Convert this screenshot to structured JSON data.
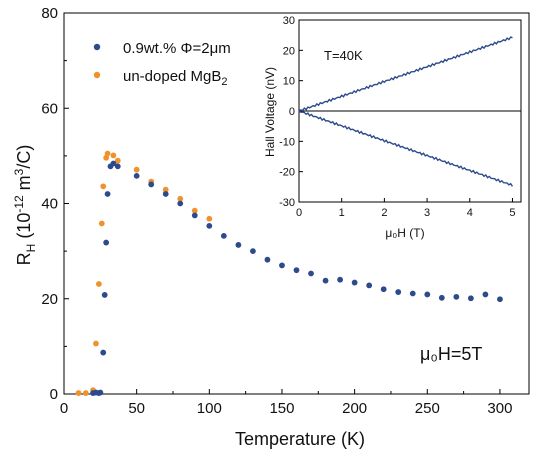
{
  "chart_data": [
    {
      "type": "scatter",
      "xlabel": "Temperature (K)",
      "ylabel_main": "R",
      "ylabel_sub": "H",
      "ylabel_unit_a": " (10",
      "ylabel_exp": "-12",
      "ylabel_unit_b": " m",
      "ylabel_exp2": "3",
      "ylabel_unit_c": "/C)",
      "xlim": [
        0,
        320
      ],
      "ylim": [
        0,
        80
      ],
      "xticks": [
        0,
        50,
        100,
        150,
        200,
        250,
        300
      ],
      "yticks": [
        0,
        20,
        40,
        60,
        80
      ],
      "legend_position": "top-left",
      "annotation": "μ₀H=5T",
      "series": [
        {
          "name": "0.9wt.% Φ=2μm",
          "color": "#2d4a8c",
          "points": [
            [
              20,
              0.2
            ],
            [
              22,
              0.3
            ],
            [
              24,
              0.2
            ],
            [
              25,
              0.3
            ],
            [
              27,
              8.7
            ],
            [
              28,
              20.8
            ],
            [
              29,
              31.8
            ],
            [
              30,
              42.0
            ],
            [
              32,
              47.8
            ],
            [
              34,
              48.4
            ],
            [
              37,
              47.8
            ],
            [
              50,
              45.8
            ],
            [
              60,
              44.0
            ],
            [
              70,
              42.0
            ],
            [
              80,
              40.0
            ],
            [
              90,
              37.5
            ],
            [
              100,
              35.3
            ],
            [
              110,
              33.2
            ],
            [
              120,
              31.3
            ],
            [
              130,
              30.0
            ],
            [
              140,
              28.2
            ],
            [
              150,
              27.0
            ],
            [
              160,
              26.0
            ],
            [
              170,
              25.3
            ],
            [
              180,
              23.8
            ],
            [
              190,
              24.0
            ],
            [
              200,
              23.4
            ],
            [
              210,
              22.8
            ],
            [
              220,
              22.0
            ],
            [
              230,
              21.4
            ],
            [
              240,
              21.1
            ],
            [
              250,
              20.9
            ],
            [
              260,
              20.2
            ],
            [
              270,
              20.4
            ],
            [
              280,
              20.1
            ],
            [
              290,
              20.9
            ],
            [
              300,
              19.9
            ]
          ]
        },
        {
          "name": "un-doped MgB",
          "name_sub": "2",
          "color": "#f0922c",
          "points": [
            [
              10,
              0.2
            ],
            [
              15,
              0.2
            ],
            [
              20,
              0.8
            ],
            [
              22,
              10.6
            ],
            [
              24,
              23.1
            ],
            [
              26,
              35.8
            ],
            [
              27,
              43.6
            ],
            [
              29,
              49.6
            ],
            [
              30,
              50.5
            ],
            [
              34,
              50.1
            ],
            [
              37,
              49.0
            ],
            [
              50,
              47.1
            ],
            [
              60,
              44.6
            ],
            [
              70,
              42.9
            ],
            [
              80,
              41.0
            ],
            [
              90,
              38.5
            ],
            [
              100,
              36.8
            ]
          ]
        }
      ]
    },
    {
      "type": "line",
      "xlabel": "μ₀H (T)",
      "ylabel": "Hall Voltage (nV)",
      "xlim": [
        0,
        5.2
      ],
      "ylim": [
        -30,
        30
      ],
      "xticks": [
        0,
        1,
        2,
        3,
        4,
        5
      ],
      "yticks": [
        -30,
        -20,
        -10,
        0,
        10,
        20,
        30
      ],
      "annotation": "T=40K",
      "color": "#2d4a8c",
      "series": [
        {
          "x": [
            0,
            5
          ],
          "y": [
            0,
            24.3
          ]
        },
        {
          "x": [
            0,
            5
          ],
          "y": [
            0,
            -24.5
          ]
        }
      ]
    }
  ]
}
